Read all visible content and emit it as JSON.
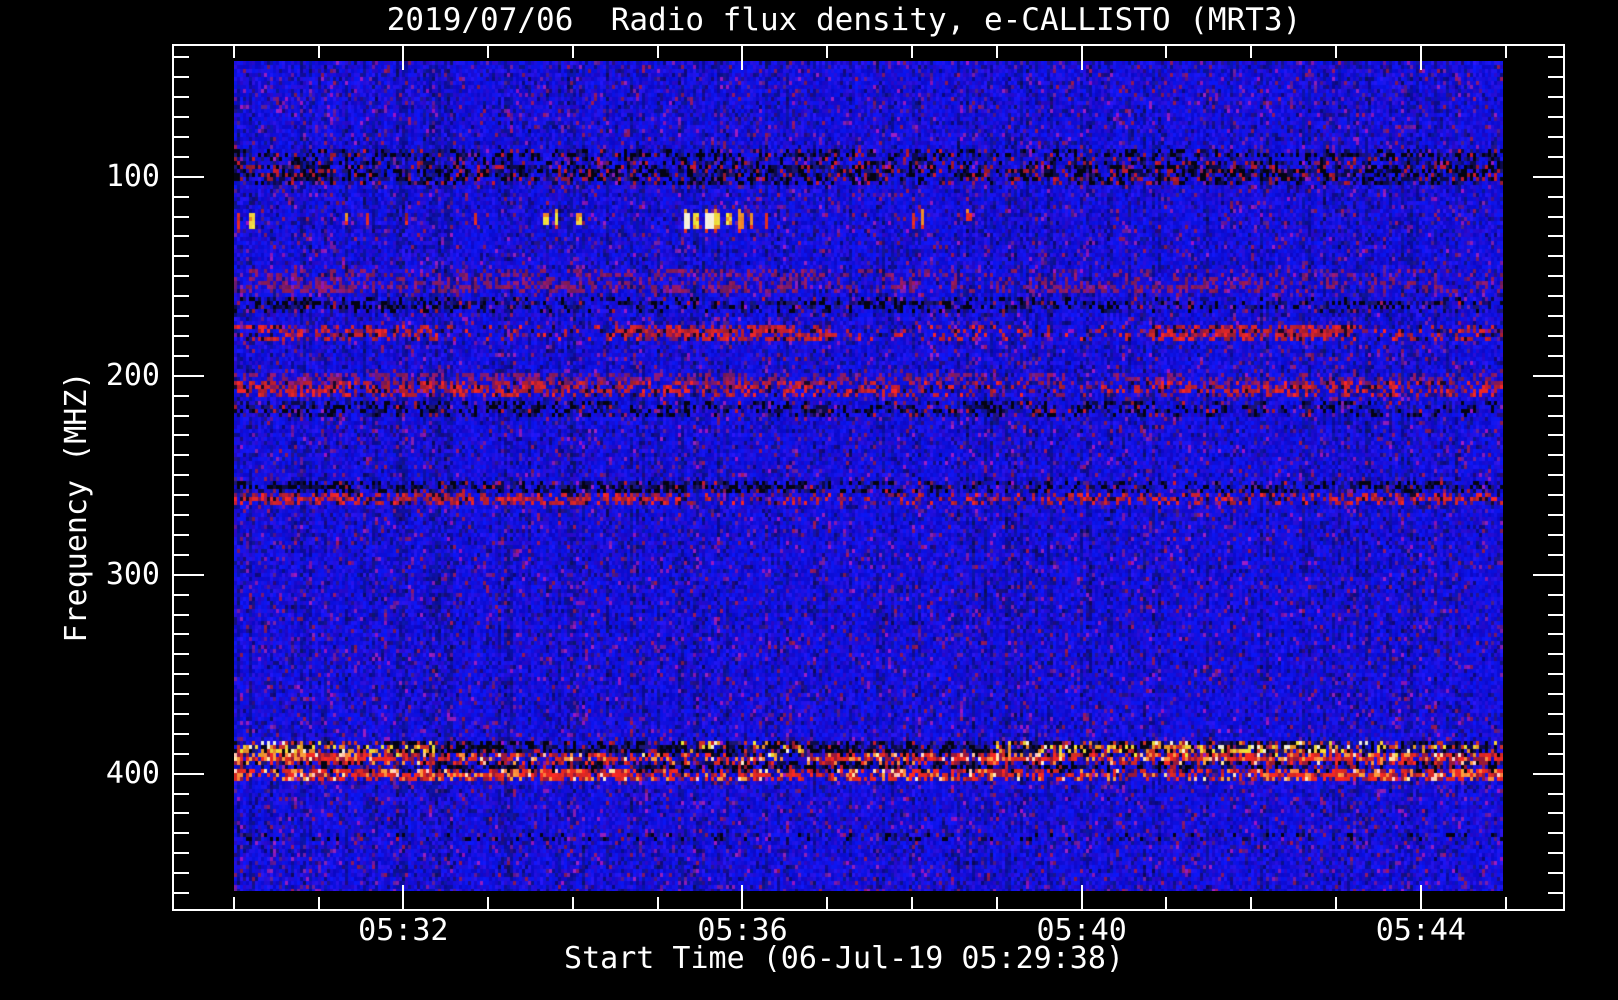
{
  "window": {
    "background": "#000000",
    "text_color": "#ffffff"
  },
  "title": "2019/07/06  Radio flux density, e-CALLISTO (MRT3)",
  "chart_data": {
    "type": "heatmap",
    "title": "2019/07/06  Radio flux density, e-CALLISTO (MRT3)",
    "xlabel": "Start Time (06-Jul-19 05:29:38)",
    "ylabel": "Frequency (MHZ)",
    "legend": "none",
    "grid": "off",
    "x_axis": {
      "unit": "time (HH:MM)",
      "major_ticks": [
        {
          "minutes": 32,
          "label": "05:32"
        },
        {
          "minutes": 36,
          "label": "05:36"
        },
        {
          "minutes": 40,
          "label": "05:40"
        },
        {
          "minutes": 44,
          "label": "05:44"
        }
      ],
      "minor_step_min": 1,
      "minor_range_min": [
        30,
        45
      ],
      "axis_span_min": [
        29.272,
        45.7
      ],
      "image_span_min": [
        30.0,
        44.97
      ]
    },
    "y_axis": {
      "unit": "MHz",
      "inverted": true,
      "major_ticks": [
        {
          "mhz": 100,
          "label": "100"
        },
        {
          "mhz": 200,
          "label": "200"
        },
        {
          "mhz": 300,
          "label": "300"
        },
        {
          "mhz": 400,
          "label": "400"
        }
      ],
      "minor_step_mhz": 10,
      "minor_range_mhz": [
        40,
        460
      ],
      "axis_span_mhz": [
        33.3,
        469.0
      ],
      "image_span_mhz": [
        42.0,
        458.8
      ]
    },
    "palette": {
      "base_blue": "#1a1ae0",
      "dark_navy": "#0d0a60",
      "purple_speckle": "#5a2096",
      "maroon_speckle": "#78285a",
      "rfi_red": "#c82828",
      "rfi_hot": "#ffd0a0",
      "black_band": "#040412",
      "burst_yellow": "#e8d44a",
      "burst_white": "#f5f2cf",
      "burst_orange": "#e2892b",
      "burst_red": "#d43a2a",
      "burst_darkred": "#8a1a1a",
      "frame": "#ffffff",
      "text": "#ffffff"
    },
    "bands": [
      {
        "name": "fm-88-91-dark",
        "style": "dark",
        "f0": 87,
        "f1": 91,
        "red_mix": 0.12,
        "segments": [
          [
            0,
            1,
            0.45
          ]
        ]
      },
      {
        "name": "fm-93-102-dark",
        "style": "dark",
        "f0": 93,
        "f1": 102,
        "red_mix": 0.22,
        "segments": [
          [
            0,
            0.08,
            0.75
          ],
          [
            0.08,
            0.35,
            0.55
          ],
          [
            0.35,
            0.52,
            0.7
          ],
          [
            0.52,
            0.62,
            0.45
          ],
          [
            0.62,
            0.8,
            0.7
          ],
          [
            0.8,
            1,
            0.6
          ]
        ]
      },
      {
        "name": "rfi-148-faint",
        "style": "faintred",
        "f0": 146,
        "f1": 150,
        "segments": [
          [
            0,
            0.55,
            0.35
          ],
          [
            0.55,
            1,
            0.2
          ]
        ]
      },
      {
        "name": "rfi-154-faint",
        "style": "faintred",
        "f0": 152,
        "f1": 157,
        "segments": [
          [
            0,
            0.45,
            0.55
          ],
          [
            0.45,
            0.62,
            0.25
          ],
          [
            0.62,
            0.8,
            0.45
          ],
          [
            0.8,
            1,
            0.3
          ]
        ]
      },
      {
        "name": "rfi-163-dark",
        "style": "dark",
        "f0": 161,
        "f1": 166,
        "red_mix": 0.05,
        "segments": [
          [
            0,
            0.2,
            0.45
          ],
          [
            0.2,
            0.5,
            0.3
          ],
          [
            0.5,
            0.62,
            0.45
          ],
          [
            0.62,
            1,
            0.25
          ]
        ]
      },
      {
        "name": "rfi-178-red",
        "style": "red",
        "f0": 175,
        "f1": 181,
        "segments": [
          [
            0,
            0.16,
            0.5
          ],
          [
            0.16,
            0.3,
            0.2
          ],
          [
            0.3,
            0.47,
            0.8
          ],
          [
            0.47,
            0.63,
            0.3
          ],
          [
            0.63,
            0.72,
            0.18
          ],
          [
            0.72,
            0.88,
            0.8
          ],
          [
            0.88,
            1,
            0.3
          ]
        ]
      },
      {
        "name": "rfi-201-fringe",
        "style": "faintred",
        "f0": 199,
        "f1": 203,
        "segments": [
          [
            0,
            0.55,
            0.45
          ],
          [
            0.55,
            1,
            0.3
          ]
        ]
      },
      {
        "name": "rfi-206-red",
        "style": "red",
        "f0": 203,
        "f1": 209,
        "segments": [
          [
            0,
            0.25,
            0.7
          ],
          [
            0.25,
            0.55,
            0.55
          ],
          [
            0.55,
            0.75,
            0.3
          ],
          [
            0.75,
            1,
            0.5
          ]
        ]
      },
      {
        "name": "rfi-215-dark",
        "style": "dark",
        "f0": 213,
        "f1": 218,
        "red_mix": 0.08,
        "segments": [
          [
            0,
            0.3,
            0.5
          ],
          [
            0.3,
            0.55,
            0.35
          ],
          [
            0.55,
            0.75,
            0.5
          ],
          [
            0.75,
            1,
            0.3
          ]
        ]
      },
      {
        "name": "rfi-254-dark",
        "style": "dark",
        "f0": 252,
        "f1": 257,
        "red_mix": 0.06,
        "segments": [
          [
            0,
            0.45,
            0.6
          ],
          [
            0.45,
            0.75,
            0.3
          ],
          [
            0.75,
            1,
            0.4
          ]
        ]
      },
      {
        "name": "rfi-260-red",
        "style": "red",
        "f0": 258,
        "f1": 263,
        "segments": [
          [
            0,
            0.35,
            0.7
          ],
          [
            0.35,
            0.65,
            0.3
          ],
          [
            0.65,
            1,
            0.5
          ]
        ]
      },
      {
        "name": "rfi-385-dark",
        "style": "dark",
        "f0": 383,
        "f1": 388,
        "red_mix": 0.1,
        "segments": [
          [
            0.12,
            0.75,
            0.75
          ],
          [
            0.75,
            1,
            0.45
          ]
        ]
      },
      {
        "name": "rfi-385-speckle",
        "style": "speckle",
        "f0": 383,
        "f1": 388,
        "segments": [
          [
            0,
            0.08,
            0.9
          ],
          [
            0.08,
            0.16,
            0.5
          ],
          [
            0.35,
            0.45,
            0.25
          ],
          [
            0.6,
            0.72,
            0.45
          ],
          [
            0.72,
            0.86,
            0.8
          ],
          [
            0.86,
            1,
            0.45
          ]
        ]
      },
      {
        "name": "rfi-390-hotred",
        "style": "hotred",
        "f0": 389,
        "f1": 392,
        "segments": [
          [
            0,
            0.1,
            0.9
          ],
          [
            0.1,
            0.3,
            0.65
          ],
          [
            0.3,
            0.45,
            0.45
          ],
          [
            0.45,
            0.65,
            0.8
          ],
          [
            0.65,
            0.72,
            0.45
          ],
          [
            0.72,
            1,
            0.85
          ]
        ]
      },
      {
        "name": "rfi-394-dark",
        "style": "dark",
        "f0": 393,
        "f1": 396,
        "red_mix": 0.15,
        "segments": [
          [
            0,
            0.2,
            0.45
          ],
          [
            0.2,
            0.5,
            0.65
          ],
          [
            0.5,
            0.75,
            0.55
          ],
          [
            0.75,
            1,
            0.45
          ]
        ]
      },
      {
        "name": "rfi-399-hotred",
        "style": "hotred",
        "f0": 397,
        "f1": 401,
        "segments": [
          [
            0,
            0.04,
            0.55
          ],
          [
            0.04,
            0.28,
            0.9
          ],
          [
            0.28,
            0.5,
            0.55
          ],
          [
            0.5,
            0.62,
            0.75
          ],
          [
            0.62,
            0.8,
            0.5
          ],
          [
            0.8,
            1,
            0.85
          ]
        ]
      },
      {
        "name": "rfi-430-faint",
        "style": "dark",
        "f0": 428,
        "f1": 431,
        "red_mix": 0.05,
        "segments": [
          [
            0,
            1,
            0.2
          ]
        ]
      }
    ],
    "bursts": [
      {
        "t_min": 30.05,
        "f_mhz": 118,
        "color": "red",
        "w": 1,
        "h": 3
      },
      {
        "t_min": 30.18,
        "f_mhz": 118,
        "color": "yellow",
        "w": 2,
        "h": 4
      },
      {
        "t_min": 31.3,
        "f_mhz": 118,
        "color": "orange",
        "w": 1,
        "h": 2
      },
      {
        "t_min": 31.55,
        "f_mhz": 118,
        "color": "red",
        "w": 1,
        "h": 2
      },
      {
        "t_min": 32.0,
        "f_mhz": 118,
        "color": "darkred",
        "w": 1,
        "h": 2
      },
      {
        "t_min": 32.82,
        "f_mhz": 118,
        "color": "red",
        "w": 1,
        "h": 3
      },
      {
        "t_min": 33.65,
        "f_mhz": 118,
        "color": "yellow",
        "w": 2,
        "h": 3
      },
      {
        "t_min": 33.8,
        "f_mhz": 118,
        "color": "yellow",
        "w": 1,
        "h": 3
      },
      {
        "t_min": 34.05,
        "f_mhz": 118,
        "color": "yellow",
        "w": 2,
        "h": 3
      },
      {
        "t_min": 35.3,
        "f_mhz": 118,
        "color": "white",
        "w": 2,
        "h": 4
      },
      {
        "t_min": 35.42,
        "f_mhz": 118,
        "color": "yellow",
        "w": 2,
        "h": 4
      },
      {
        "t_min": 35.54,
        "f_mhz": 118,
        "color": "white",
        "w": 3,
        "h": 4
      },
      {
        "t_min": 35.66,
        "f_mhz": 118,
        "color": "yellow",
        "w": 2,
        "h": 4
      },
      {
        "t_min": 35.8,
        "f_mhz": 118,
        "color": "yellow",
        "w": 2,
        "h": 3
      },
      {
        "t_min": 35.95,
        "f_mhz": 118,
        "color": "orange",
        "w": 2,
        "h": 4
      },
      {
        "t_min": 36.1,
        "f_mhz": 118,
        "color": "orange",
        "w": 1,
        "h": 3
      },
      {
        "t_min": 36.26,
        "f_mhz": 118,
        "color": "red",
        "w": 1,
        "h": 4
      },
      {
        "t_min": 38.0,
        "f_mhz": 118,
        "color": "red",
        "w": 1,
        "h": 3
      },
      {
        "t_min": 38.12,
        "f_mhz": 118,
        "color": "orange",
        "w": 1,
        "h": 3
      },
      {
        "t_min": 38.62,
        "f_mhz": 118,
        "color": "red",
        "w": 2,
        "h": 2
      }
    ]
  }
}
